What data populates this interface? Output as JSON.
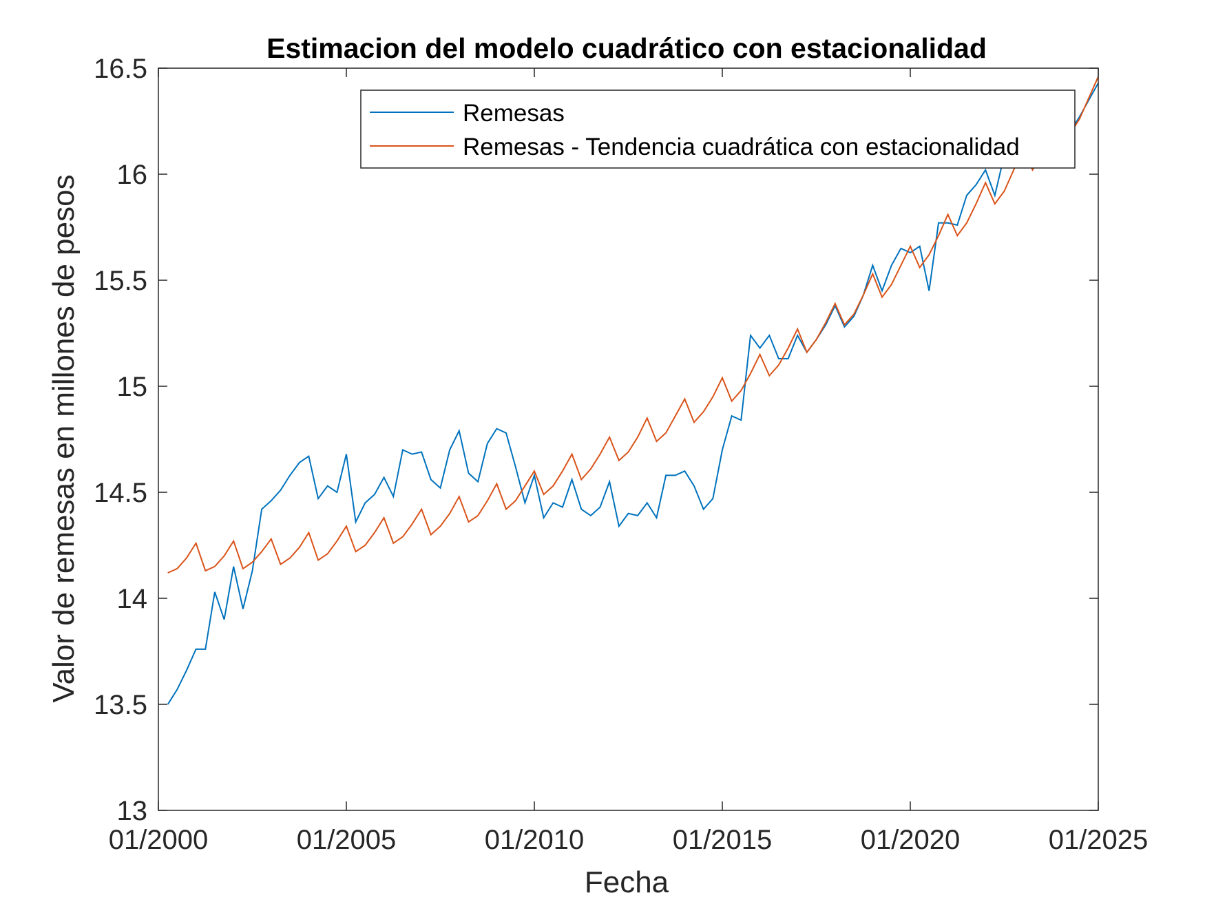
{
  "chart_data": {
    "type": "line",
    "title": "Estimacion del modelo cuadrático con estacionalidad",
    "xlabel": "Fecha",
    "ylabel": "Valor de remesas en millones de pesos",
    "xlim": [
      2000.0,
      2025.0
    ],
    "ylim": [
      13,
      16.5
    ],
    "xticks": [
      2000,
      2005,
      2010,
      2015,
      2020,
      2025
    ],
    "xtick_labels": [
      "01/2000",
      "01/2005",
      "01/2010",
      "01/2015",
      "01/2020",
      "01/2025"
    ],
    "yticks": [
      13,
      13.5,
      14,
      14.5,
      15,
      15.5,
      16,
      16.5
    ],
    "ytick_labels": [
      "13",
      "13.5",
      "14",
      "14.5",
      "15",
      "15.5",
      "16",
      "16.5"
    ],
    "grid": false,
    "legend_position": "top-right",
    "x": [
      2000.25,
      2000.5,
      2000.75,
      2001.0,
      2001.25,
      2001.5,
      2001.75,
      2002.0,
      2002.25,
      2002.5,
      2002.75,
      2003.0,
      2003.25,
      2003.5,
      2003.75,
      2004.0,
      2004.25,
      2004.5,
      2004.75,
      2005.0,
      2005.25,
      2005.5,
      2005.75,
      2006.0,
      2006.25,
      2006.5,
      2006.75,
      2007.0,
      2007.25,
      2007.5,
      2007.75,
      2008.0,
      2008.25,
      2008.5,
      2008.75,
      2009.0,
      2009.25,
      2009.5,
      2009.75,
      2010.0,
      2010.25,
      2010.5,
      2010.75,
      2011.0,
      2011.25,
      2011.5,
      2011.75,
      2012.0,
      2012.25,
      2012.5,
      2012.75,
      2013.0,
      2013.25,
      2013.5,
      2013.75,
      2014.0,
      2014.25,
      2014.5,
      2014.75,
      2015.0,
      2015.25,
      2015.5,
      2015.75,
      2016.0,
      2016.25,
      2016.5,
      2016.75,
      2017.0,
      2017.25,
      2017.5,
      2017.75,
      2018.0,
      2018.25,
      2018.5,
      2018.75,
      2019.0,
      2019.25,
      2019.5,
      2019.75,
      2020.0,
      2020.25,
      2020.5,
      2020.75,
      2021.0,
      2021.25,
      2021.5,
      2021.75,
      2022.0,
      2022.25,
      2022.5,
      2022.75,
      2023.0,
      2023.25,
      2023.5,
      2023.75,
      2024.0,
      2024.25,
      2024.5,
      2024.75,
      2025.0
    ],
    "series": [
      {
        "name": "Remesas",
        "color": "#0072BD",
        "values": [
          13.5,
          13.57,
          13.66,
          13.76,
          13.76,
          14.03,
          13.9,
          14.15,
          13.95,
          14.13,
          14.42,
          14.46,
          14.51,
          14.58,
          14.64,
          14.67,
          14.47,
          14.53,
          14.5,
          14.68,
          14.36,
          14.45,
          14.49,
          14.57,
          14.48,
          14.7,
          14.68,
          14.69,
          14.56,
          14.52,
          14.7,
          14.79,
          14.59,
          14.55,
          14.73,
          14.8,
          14.78,
          14.62,
          14.45,
          14.58,
          14.38,
          14.45,
          14.43,
          14.56,
          14.42,
          14.39,
          14.43,
          14.55,
          14.34,
          14.4,
          14.39,
          14.45,
          14.38,
          14.58,
          14.58,
          14.6,
          14.53,
          14.42,
          14.47,
          14.7,
          14.86,
          14.84,
          15.24,
          15.18,
          15.24,
          15.13,
          15.13,
          15.24,
          15.16,
          15.22,
          15.29,
          15.38,
          15.28,
          15.33,
          15.43,
          15.57,
          15.45,
          15.57,
          15.65,
          15.63,
          15.66,
          15.45,
          15.77,
          15.77,
          15.76,
          15.9,
          15.95,
          16.02,
          15.9,
          16.09,
          16.1,
          16.08,
          16.1,
          16.1,
          16.15,
          16.16,
          16.2,
          16.27,
          16.35,
          16.43
        ]
      },
      {
        "name": "Remesas - Tendencia cuadrática con estacionalidad",
        "color": "#D95319",
        "values": [
          14.12,
          14.14,
          14.19,
          14.26,
          14.13,
          14.15,
          14.2,
          14.27,
          14.14,
          14.17,
          14.22,
          14.28,
          14.16,
          14.19,
          14.24,
          14.31,
          14.18,
          14.21,
          14.27,
          14.34,
          14.22,
          14.25,
          14.31,
          14.38,
          14.26,
          14.29,
          14.35,
          14.42,
          14.3,
          14.34,
          14.4,
          14.48,
          14.36,
          14.39,
          14.46,
          14.54,
          14.42,
          14.46,
          14.53,
          14.6,
          14.49,
          14.53,
          14.6,
          14.68,
          14.56,
          14.61,
          14.68,
          14.76,
          14.65,
          14.69,
          14.76,
          14.85,
          14.74,
          14.78,
          14.86,
          14.94,
          14.83,
          14.88,
          14.95,
          15.04,
          14.93,
          14.98,
          15.06,
          15.15,
          15.05,
          15.1,
          15.18,
          15.27,
          15.16,
          15.22,
          15.3,
          15.39,
          15.29,
          15.34,
          15.43,
          15.53,
          15.42,
          15.48,
          15.57,
          15.66,
          15.56,
          15.62,
          15.71,
          15.81,
          15.71,
          15.77,
          15.86,
          15.96,
          15.86,
          15.92,
          16.02,
          16.12,
          16.02,
          16.09,
          16.19,
          16.29,
          16.19,
          16.26,
          16.36,
          16.46
        ]
      }
    ]
  }
}
